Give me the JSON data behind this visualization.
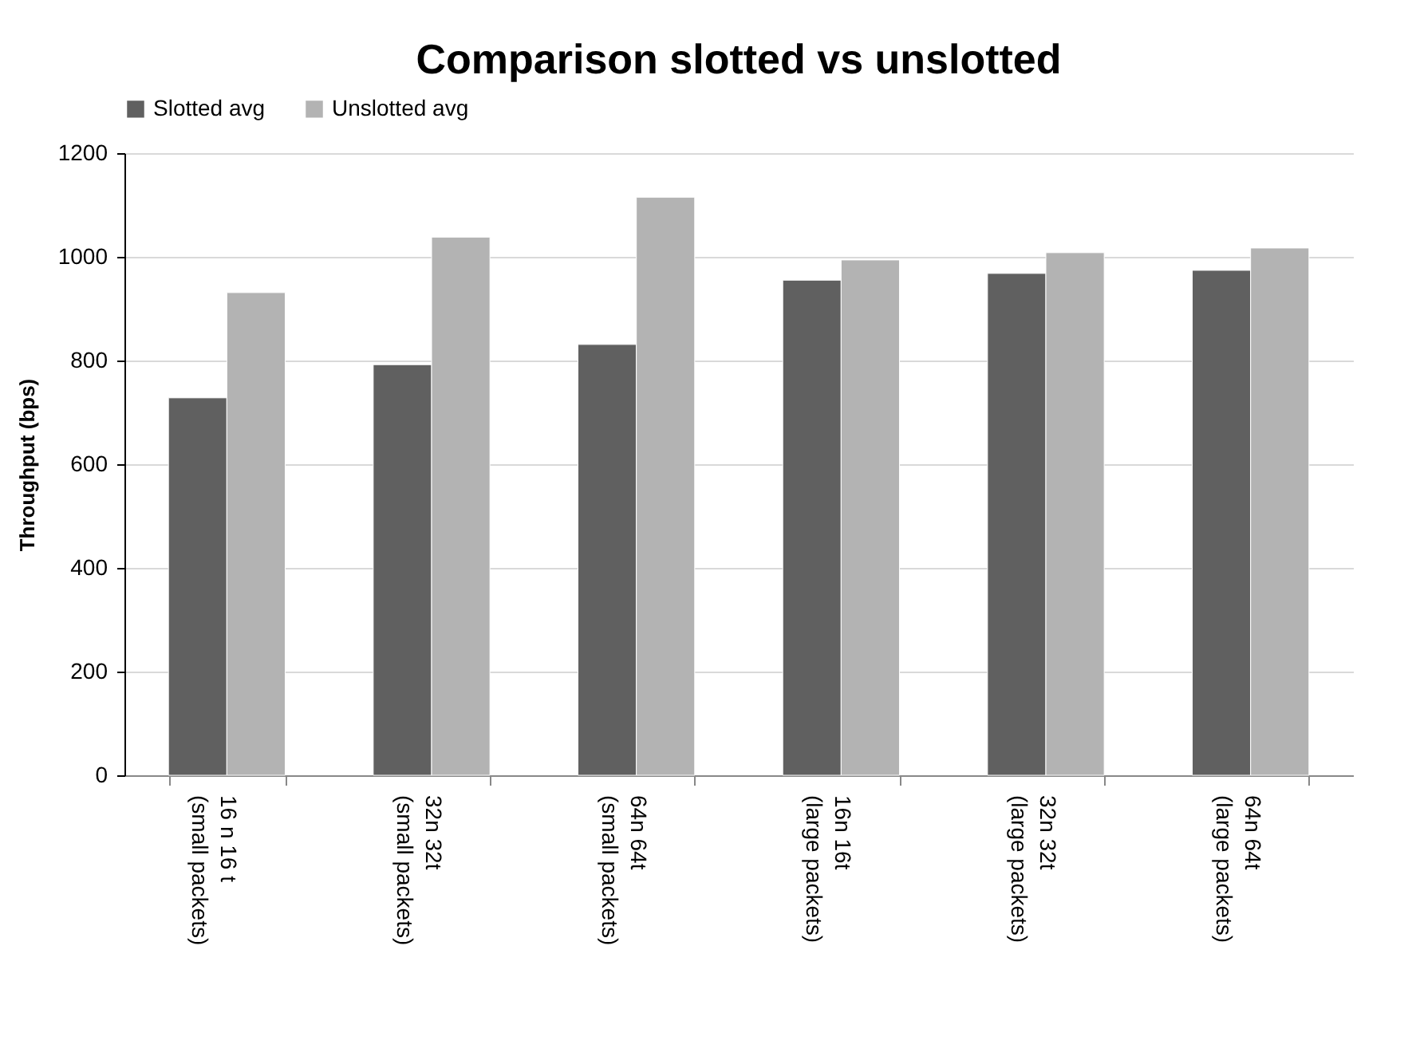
{
  "chart_data": {
    "type": "bar",
    "title": "Comparison slotted vs unslotted",
    "ylabel": "Throughput (bps)",
    "categories": [
      "16 n 16 t\n(small packets)",
      "32n 32t\n(small packets)",
      "64n 64t\n(small packets)",
      "16n 16t\n(large packets)",
      "32n 32t\n(large packets)",
      "64n 64t\n(large packets)"
    ],
    "series": [
      {
        "name": "Slotted avg",
        "color": "#606060",
        "values": [
          728,
          792,
          831,
          955,
          968,
          974
        ]
      },
      {
        "name": "Unslotted avg",
        "color": "#b3b3b3",
        "values": [
          931,
          1038,
          1115,
          994,
          1008,
          1017
        ]
      }
    ],
    "ylim": [
      0,
      1200
    ],
    "yticks": [
      0,
      200,
      400,
      600,
      800,
      1000,
      1200
    ],
    "grid": "y",
    "legend": "top"
  }
}
